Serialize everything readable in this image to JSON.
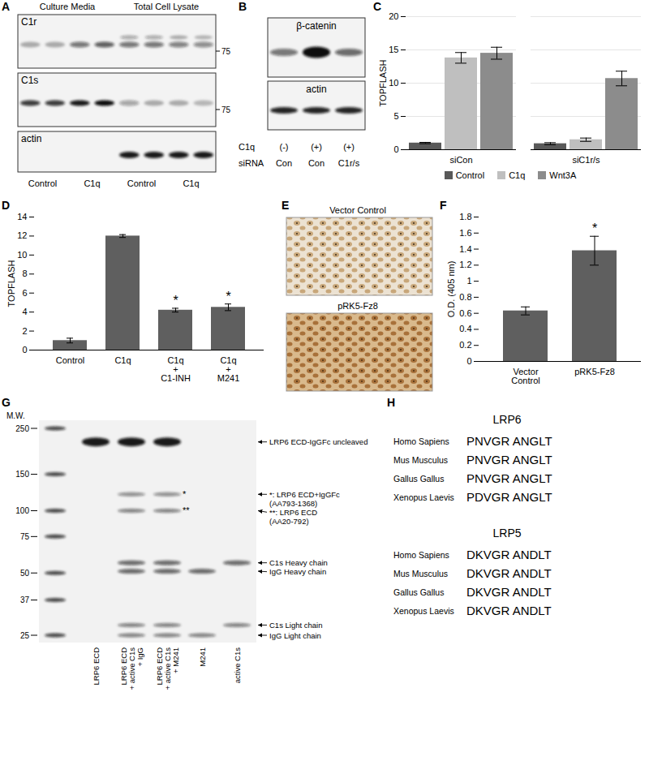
{
  "chart_data": [
    {
      "title": "C",
      "type": "bar",
      "y_label": "TOPFLASH",
      "categories": [
        "siCon",
        "siC1r/s"
      ],
      "series": [
        {
          "name": "Control",
          "color": "#595959",
          "values": [
            1.0,
            0.9
          ],
          "errors": [
            0.1,
            0.15
          ]
        },
        {
          "name": "C1q",
          "color": "#bfbfbf",
          "values": [
            13.8,
            1.5
          ],
          "errors": [
            0.8,
            0.25
          ]
        },
        {
          "name": "Wnt3A",
          "color": "#8c8c8c",
          "values": [
            14.5,
            10.7
          ],
          "errors": [
            0.9,
            1.1
          ]
        }
      ],
      "ylim": [
        0,
        20
      ],
      "yticks": [
        0,
        5,
        10,
        15,
        20
      ],
      "grid": true,
      "legend": "bottom"
    },
    {
      "title": "D",
      "type": "bar",
      "y_label": "TOPFLASH",
      "categories": [
        "Control",
        "C1q",
        "C1q\n+\nC1-INH",
        "C1q\n+\nM241"
      ],
      "values": [
        1.0,
        12.0,
        4.2,
        4.5
      ],
      "errors": [
        0.25,
        0.15,
        0.2,
        0.35
      ],
      "color": "#5f5f5f",
      "ylim": [
        0,
        14
      ],
      "yticks": [
        0,
        2,
        4,
        6,
        8,
        10,
        12,
        14
      ],
      "grid": false,
      "annotations": [
        {
          "category": "C1q\n+\nC1-INH",
          "text": "*"
        },
        {
          "category": "C1q\n+\nM241",
          "text": "*"
        }
      ]
    },
    {
      "title": "F",
      "type": "bar",
      "y_label": "O.D. (405 nm)",
      "categories": [
        "Vector\nControl",
        "pRK5-Fz8"
      ],
      "values": [
        0.63,
        1.38
      ],
      "errors": [
        0.05,
        0.18
      ],
      "color": "#5f5f5f",
      "ylim": [
        0,
        1.8
      ],
      "yticks": [
        0,
        0.2,
        0.4,
        0.6,
        0.8,
        1,
        1.2,
        1.4,
        1.6,
        1.8
      ],
      "grid": false,
      "annotations": [
        {
          "category": "pRK5-Fz8",
          "text": "*"
        }
      ]
    }
  ],
  "panels": {
    "A": {
      "label": "A",
      "headers": [
        "Culture Media",
        "Total Cell Lysate"
      ],
      "rows": [
        "C1r",
        "C1s",
        "actin"
      ],
      "size_marker": 75,
      "lanes": [
        "Control",
        "C1q",
        "Control",
        "C1q"
      ]
    },
    "B": {
      "label": "B",
      "rows": [
        "β-catenin",
        "actin"
      ],
      "conditions": [
        {
          "name": "C1q",
          "values": [
            "(-)",
            "(+)",
            "(+)"
          ]
        },
        {
          "name": "siRNA",
          "values": [
            "Con",
            "Con",
            "C1r/s"
          ]
        }
      ]
    },
    "E": {
      "label": "E",
      "images": [
        "Vector Control",
        "pRK5-Fz8"
      ]
    },
    "G": {
      "label": "G",
      "axis_title": "M.W.",
      "mw_ticks": [
        250,
        150,
        100,
        75,
        50,
        37,
        25
      ],
      "lanes": [
        "LRP6 ECD",
        "LRP6 ECD\n+ active C1s\n+ IgG",
        "LRP6 ECD\n+ active C1s\n+ M241",
        "M241",
        "active C1s"
      ],
      "bands": [
        {
          "label": "LRP6 ECD-IgGFc uncleaved",
          "mw": 215
        },
        {
          "label": "*: LRP6 ECD+IgGFc\n(AA793-1368)",
          "mark": "*",
          "mw": 120
        },
        {
          "label": "**: LRP6 ECD\n(AA20-792)",
          "mark": "**",
          "mw": 100
        },
        {
          "label": "C1s Heavy chain",
          "mw": 56
        },
        {
          "label": "IgG Heavy chain",
          "mw": 51
        },
        {
          "label": "C1s Light chain",
          "mw": 28
        },
        {
          "label": "IgG Light chain",
          "mw": 25
        }
      ]
    },
    "H": {
      "label": "H",
      "groups": [
        {
          "title": "LRP6",
          "rows": [
            {
              "species": "Homo Sapiens",
              "sequence": "PNVGR ANGLT"
            },
            {
              "species": "Mus Musculus",
              "sequence": "PNVGR ANGLT"
            },
            {
              "species": "Gallus Gallus",
              "sequence": "PNVGR ANGLT"
            },
            {
              "species": "Xenopus Laevis",
              "sequence": "PDVGR ANGLT"
            }
          ]
        },
        {
          "title": "LRP5",
          "rows": [
            {
              "species": "Homo Sapiens",
              "sequence": "DKVGR ANDLT"
            },
            {
              "species": "Mus Musculus",
              "sequence": "DKVGR ANDLT"
            },
            {
              "species": "Gallus Gallus",
              "sequence": "DKVGR ANDLT"
            },
            {
              "species": "Xenopus Laevis",
              "sequence": "DKVGR ANDLT"
            }
          ]
        }
      ]
    }
  }
}
